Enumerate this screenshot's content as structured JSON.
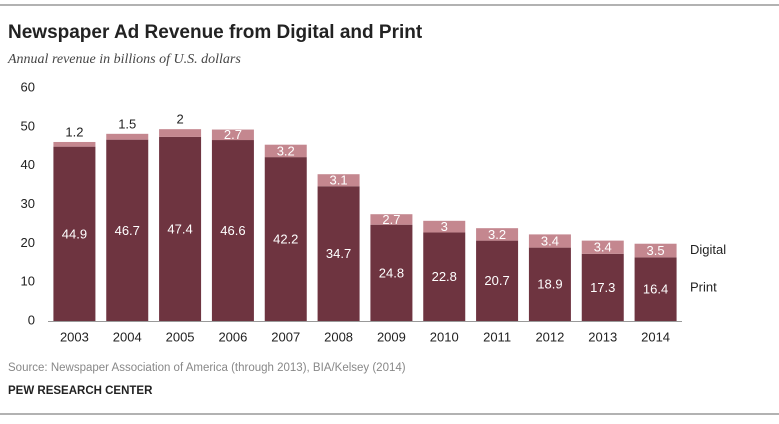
{
  "chart_data": {
    "type": "stacked_bar",
    "title": "Newspaper Ad Revenue from Digital and Print",
    "subtitle": "Annual  revenue in billions of U.S. dollars",
    "categories": [
      "2003",
      "2004",
      "2005",
      "2006",
      "2007",
      "2008",
      "2009",
      "2010",
      "2011",
      "2012",
      "2013",
      "2014"
    ],
    "series": [
      {
        "name": "Print",
        "color": "#6e3440",
        "values": [
          44.9,
          46.7,
          47.4,
          46.6,
          42.2,
          34.7,
          24.8,
          22.8,
          20.7,
          18.9,
          17.3,
          16.4
        ]
      },
      {
        "name": "Digital",
        "color": "#c4878f",
        "values": [
          1.2,
          1.5,
          2,
          2.7,
          3.2,
          3.1,
          2.7,
          3,
          3.2,
          3.4,
          3.4,
          3.5
        ]
      }
    ],
    "ylim": [
      0,
      60
    ],
    "yticks": [
      0,
      10,
      20,
      30,
      40,
      50,
      60
    ],
    "source": "Source: Newspaper Association of America (through 2013), BIA/Kelsey (2014)",
    "organization": "PEW RESEARCH CENTER"
  }
}
